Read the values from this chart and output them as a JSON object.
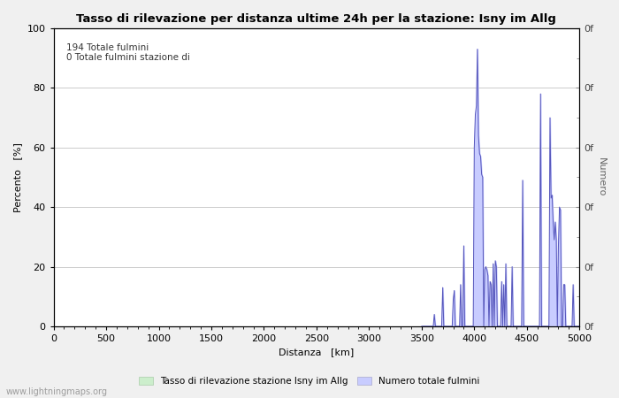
{
  "title": "Tasso di rilevazione per distanza ultime 24h per la stazione: Isny im Allg",
  "xlabel": "Distanza   [km]",
  "ylabel_left": "Percento   [%]",
  "ylabel_right": "Numero",
  "annotation_line1": "194 Totale fulmini",
  "annotation_line2": "0 Totale fulmini stazione di",
  "xlim": [
    0,
    5000
  ],
  "ylim": [
    0,
    100
  ],
  "xticks": [
    0,
    500,
    1000,
    1500,
    2000,
    2500,
    3000,
    3500,
    4000,
    4500,
    5000
  ],
  "yticks_left": [
    0,
    20,
    40,
    60,
    80,
    100
  ],
  "yticks_right_vals": [
    0,
    20,
    40,
    60,
    80,
    100
  ],
  "yticks_right_labels": [
    "0f",
    "0f",
    "0f",
    "0f",
    "0f",
    "0f"
  ],
  "fill_color": "#c8ccff",
  "line_color": "#5555bb",
  "plot_bg_color": "#ffffff",
  "fig_bg_color": "#f0f0f0",
  "grid_color": "#cccccc",
  "legend_label_green": "Tasso di rilevazione stazione Isny im Allg",
  "legend_label_blue": "Numero totale fulmini",
  "legend_green_color": "#cceecc",
  "legend_blue_color": "#c8ccff",
  "legend_green_edge": "#aaccaa",
  "legend_blue_edge": "#aaaacc",
  "watermark": "www.lightningmaps.org",
  "title_fontsize": 9.5,
  "axis_label_fontsize": 8,
  "tick_fontsize": 8,
  "annotation_fontsize": 7.5,
  "legend_fontsize": 7.5,
  "watermark_fontsize": 7,
  "data_x": [
    3500,
    3510,
    3520,
    3530,
    3540,
    3550,
    3560,
    3570,
    3580,
    3590,
    3600,
    3610,
    3620,
    3630,
    3640,
    3650,
    3660,
    3670,
    3680,
    3690,
    3700,
    3710,
    3720,
    3730,
    3740,
    3750,
    3760,
    3770,
    3780,
    3790,
    3800,
    3810,
    3820,
    3830,
    3840,
    3850,
    3860,
    3870,
    3880,
    3890,
    3900,
    3910,
    3920,
    3930,
    3940,
    3950,
    3960,
    3970,
    3980,
    3990,
    4000,
    4010,
    4020,
    4030,
    4040,
    4050,
    4060,
    4070,
    4080,
    4090,
    4100,
    4110,
    4120,
    4130,
    4140,
    4150,
    4160,
    4170,
    4180,
    4190,
    4200,
    4210,
    4220,
    4230,
    4240,
    4250,
    4260,
    4270,
    4280,
    4290,
    4300,
    4310,
    4320,
    4330,
    4340,
    4350,
    4360,
    4370,
    4380,
    4390,
    4400,
    4410,
    4420,
    4430,
    4440,
    4450,
    4460,
    4470,
    4480,
    4490,
    4500,
    4510,
    4520,
    4530,
    4540,
    4550,
    4560,
    4570,
    4580,
    4590,
    4600,
    4610,
    4620,
    4630,
    4640,
    4650,
    4660,
    4670,
    4680,
    4690,
    4700,
    4710,
    4720,
    4730,
    4740,
    4750,
    4760,
    4770,
    4780,
    4790,
    4800,
    4810,
    4820,
    4830,
    4840,
    4850,
    4860,
    4870,
    4880,
    4890,
    4900,
    4910,
    4920,
    4930,
    4940,
    4950,
    4960,
    4970,
    4980,
    4990,
    5000
  ],
  "data_y": [
    0,
    0,
    0,
    0,
    0,
    0,
    0,
    0,
    0,
    0,
    0,
    0,
    4,
    0,
    0,
    0,
    0,
    0,
    0,
    0,
    13,
    0,
    0,
    0,
    0,
    0,
    0,
    0,
    0,
    0,
    9,
    12,
    0,
    0,
    0,
    0,
    0,
    14,
    0,
    0,
    27,
    0,
    0,
    0,
    0,
    0,
    0,
    0,
    0,
    0,
    60,
    71,
    74,
    93,
    64,
    58,
    57,
    51,
    50,
    0,
    19,
    20,
    19,
    17,
    0,
    15,
    14,
    0,
    21,
    0,
    22,
    20,
    0,
    0,
    0,
    0,
    15,
    0,
    14,
    0,
    21,
    0,
    0,
    0,
    0,
    0,
    20,
    0,
    0,
    0,
    0,
    0,
    0,
    0,
    0,
    0,
    49,
    0,
    0,
    0,
    0,
    0,
    0,
    0,
    0,
    0,
    0,
    0,
    0,
    0,
    0,
    0,
    0,
    78,
    0,
    0,
    0,
    0,
    0,
    0,
    0,
    0,
    70,
    43,
    44,
    35,
    29,
    35,
    29,
    0,
    27,
    40,
    39,
    0,
    0,
    14,
    14,
    0,
    0,
    0,
    0,
    0,
    0,
    0,
    14,
    0,
    0,
    0,
    0,
    0,
    0
  ]
}
